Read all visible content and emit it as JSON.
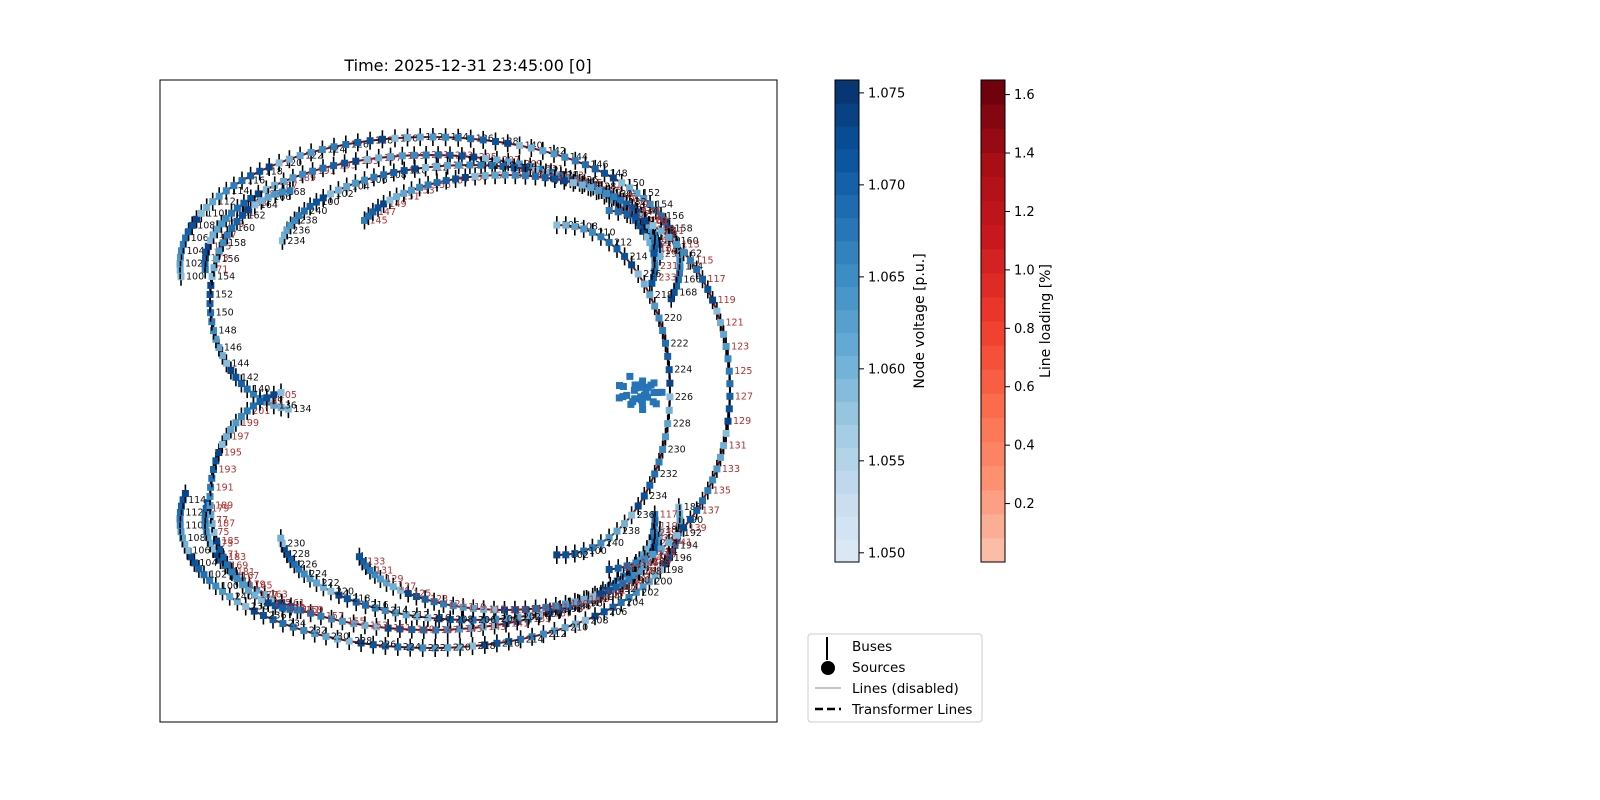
{
  "chart_data": {
    "type": "network",
    "title": "Time: 2025-12-31 23:45:00 [0]",
    "node_count_max_label": 800,
    "node_labels_black": [
      "100",
      "102",
      "104",
      "106",
      "108",
      "110",
      "112",
      "114",
      "116",
      "118",
      "120",
      "122",
      "124",
      "126",
      "128",
      "130",
      "132",
      "134",
      "136",
      "138",
      "140",
      "142",
      "144",
      "146",
      "148",
      "150",
      "152",
      "154",
      "156",
      "158",
      "160",
      "162",
      "164",
      "166",
      "168",
      "170",
      "172",
      "174",
      "176",
      "178",
      "180",
      "182",
      "184",
      "186",
      "188",
      "190",
      "192",
      "194",
      "196",
      "198",
      "200",
      "202",
      "204",
      "206",
      "208",
      "210",
      "212",
      "214",
      "216",
      "218",
      "220",
      "222",
      "224",
      "226",
      "228",
      "230",
      "232",
      "234",
      "236",
      "238",
      "240"
    ],
    "node_labels_red": [
      "101",
      "103",
      "105",
      "107",
      "109",
      "111",
      "113",
      "115",
      "117",
      "119",
      "121",
      "123",
      "125",
      "127",
      "129",
      "131",
      "133",
      "135",
      "137",
      "139",
      "141",
      "143",
      "145",
      "147",
      "149",
      "151",
      "153",
      "155",
      "157",
      "159",
      "161",
      "163",
      "165",
      "167",
      "169",
      "171",
      "173",
      "175",
      "177",
      "179",
      "181",
      "183",
      "185",
      "187",
      "189",
      "191",
      "193",
      "195",
      "197",
      "199",
      "201",
      "203",
      "205",
      "207",
      "209",
      "211",
      "213",
      "215",
      "217",
      "219",
      "221",
      "223",
      "225",
      "227",
      "229",
      "231",
      "233",
      "235",
      "237",
      "239",
      "241"
    ],
    "colorbars": [
      {
        "label": "Node voltage [p.u.]",
        "min": 1.0495,
        "max": 1.0757,
        "ticks": [
          1.05,
          1.055,
          1.06,
          1.065,
          1.07,
          1.075
        ],
        "tick_labels": [
          "1.050",
          "1.055",
          "1.060",
          "1.065",
          "1.070",
          "1.075"
        ],
        "colormap": "Blues",
        "levels": 21
      },
      {
        "label": "Line loading [%]",
        "min": 0.0,
        "max": 1.65,
        "ticks": [
          0.2,
          0.4,
          0.6,
          0.8,
          1.0,
          1.2,
          1.4,
          1.6
        ],
        "tick_labels": [
          "0.2",
          "0.4",
          "0.6",
          "0.8",
          "1.0",
          "1.2",
          "1.4",
          "1.6"
        ],
        "colormap": "Reds",
        "levels": 20
      }
    ],
    "legend": {
      "placement": "bottom-right of plot",
      "entries": [
        {
          "label": "Buses",
          "marker": "vertical-line"
        },
        {
          "label": "Sources",
          "marker": "circle"
        },
        {
          "label": "Lines (disabled)",
          "marker": "thin-grey-line"
        },
        {
          "label": "Transformer Lines",
          "marker": "dashed-line"
        }
      ]
    },
    "colors": {
      "node_blue": "#4a8cc4",
      "line_dark": "#6b0a0a",
      "label_red": "#b03030"
    }
  }
}
